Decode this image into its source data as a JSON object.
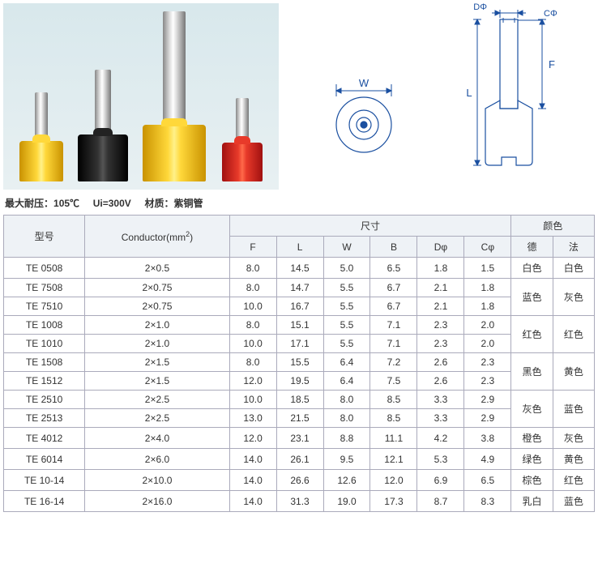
{
  "specs_line": {
    "label1": "最大耐压：",
    "val1": "105℃",
    "label2": "Ui=300V",
    "label3": "材质：",
    "val3": "紫铜管"
  },
  "diagram_labels": {
    "W": "W",
    "L": "L",
    "F": "F",
    "DPhi": "DΦ",
    "CPhi": "CΦ"
  },
  "table": {
    "headers": {
      "model": "型号",
      "conductor": "Conductor(mm",
      "conductor_sup": "2",
      "conductor_close": ")",
      "dimensions": "尺寸",
      "color": "颜色",
      "F": "F",
      "L": "L",
      "W": "W",
      "B": "B",
      "DPhi": "Dφ",
      "CPhi": "Cφ",
      "de": "德",
      "fa": "法"
    },
    "rows": [
      {
        "model": "TE 0508",
        "cond": "2×0.5",
        "F": "8.0",
        "L": "14.5",
        "W": "5.0",
        "B": "6.5",
        "D": "1.8",
        "C": "1.5",
        "de": "白色",
        "fa": "白色",
        "de_rs": 1,
        "fa_rs": 1
      },
      {
        "model": "TE 7508",
        "cond": "2×0.75",
        "F": "8.0",
        "L": "14.7",
        "W": "5.5",
        "B": "6.7",
        "D": "2.1",
        "C": "1.8",
        "de": "蓝色",
        "fa": "灰色",
        "de_rs": 2,
        "fa_rs": 2
      },
      {
        "model": "TE 7510",
        "cond": "2×0.75",
        "F": "10.0",
        "L": "16.7",
        "W": "5.5",
        "B": "6.7",
        "D": "2.1",
        "C": "1.8"
      },
      {
        "model": "TE 1008",
        "cond": "2×1.0",
        "F": "8.0",
        "L": "15.1",
        "W": "5.5",
        "B": "7.1",
        "D": "2.3",
        "C": "2.0",
        "de": "红色",
        "fa": "红色",
        "de_rs": 2,
        "fa_rs": 2
      },
      {
        "model": "TE 1010",
        "cond": "2×1.0",
        "F": "10.0",
        "L": "17.1",
        "W": "5.5",
        "B": "7.1",
        "D": "2.3",
        "C": "2.0"
      },
      {
        "model": "TE 1508",
        "cond": "2×1.5",
        "F": "8.0",
        "L": "15.5",
        "W": "6.4",
        "B": "7.2",
        "D": "2.6",
        "C": "2.3",
        "de": "黑色",
        "fa": "黄色",
        "de_rs": 2,
        "fa_rs": 2
      },
      {
        "model": "TE 1512",
        "cond": "2×1.5",
        "F": "12.0",
        "L": "19.5",
        "W": "6.4",
        "B": "7.5",
        "D": "2.6",
        "C": "2.3"
      },
      {
        "model": "TE 2510",
        "cond": "2×2.5",
        "F": "10.0",
        "L": "18.5",
        "W": "8.0",
        "B": "8.5",
        "D": "3.3",
        "C": "2.9",
        "de": "灰色",
        "fa": "蓝色",
        "de_rs": 2,
        "fa_rs": 2
      },
      {
        "model": "TE 2513",
        "cond": "2×2.5",
        "F": "13.0",
        "L": "21.5",
        "W": "8.0",
        "B": "8.5",
        "D": "3.3",
        "C": "2.9"
      },
      {
        "model": "TE 4012",
        "cond": "2×4.0",
        "F": "12.0",
        "L": "23.1",
        "W": "8.8",
        "B": "11.1",
        "D": "4.2",
        "C": "3.8",
        "de": "橙色",
        "fa": "灰色",
        "de_rs": 1,
        "fa_rs": 1
      },
      {
        "model": "TE 6014",
        "cond": "2×6.0",
        "F": "14.0",
        "L": "26.1",
        "W": "9.5",
        "B": "12.1",
        "D": "5.3",
        "C": "4.9",
        "de": "绿色",
        "fa": "黄色",
        "de_rs": 1,
        "fa_rs": 1
      },
      {
        "model": "TE 10-14",
        "cond": "2×10.0",
        "F": "14.0",
        "L": "26.6",
        "W": "12.6",
        "B": "12.0",
        "D": "6.9",
        "C": "6.5",
        "de": "棕色",
        "fa": "红色",
        "de_rs": 1,
        "fa_rs": 1
      },
      {
        "model": "TE 16-14",
        "cond": "2×16.0",
        "F": "14.0",
        "L": "31.3",
        "W": "19.0",
        "B": "17.3",
        "D": "8.7",
        "C": "8.3",
        "de": "乳白",
        "fa": "蓝色",
        "de_rs": 1,
        "fa_rs": 1
      }
    ]
  }
}
